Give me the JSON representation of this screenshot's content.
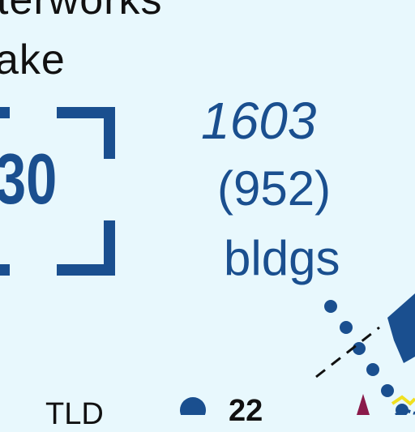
{
  "title": {
    "line1": "terworks",
    "line2": "ake"
  },
  "badge": {
    "number": "30"
  },
  "building_count": {
    "total": "1603",
    "in_parentheses": "(952)",
    "unit": "bldgs"
  },
  "bottom_labels": {
    "left": "TLD",
    "right": "22"
  },
  "colors": {
    "background": "#e8f8fd",
    "primary_blue": "#1a4f8f",
    "route_dots": "#1a4f8f",
    "marker_red": "#8a1a4a",
    "marker_yellow": "#f0e020"
  }
}
